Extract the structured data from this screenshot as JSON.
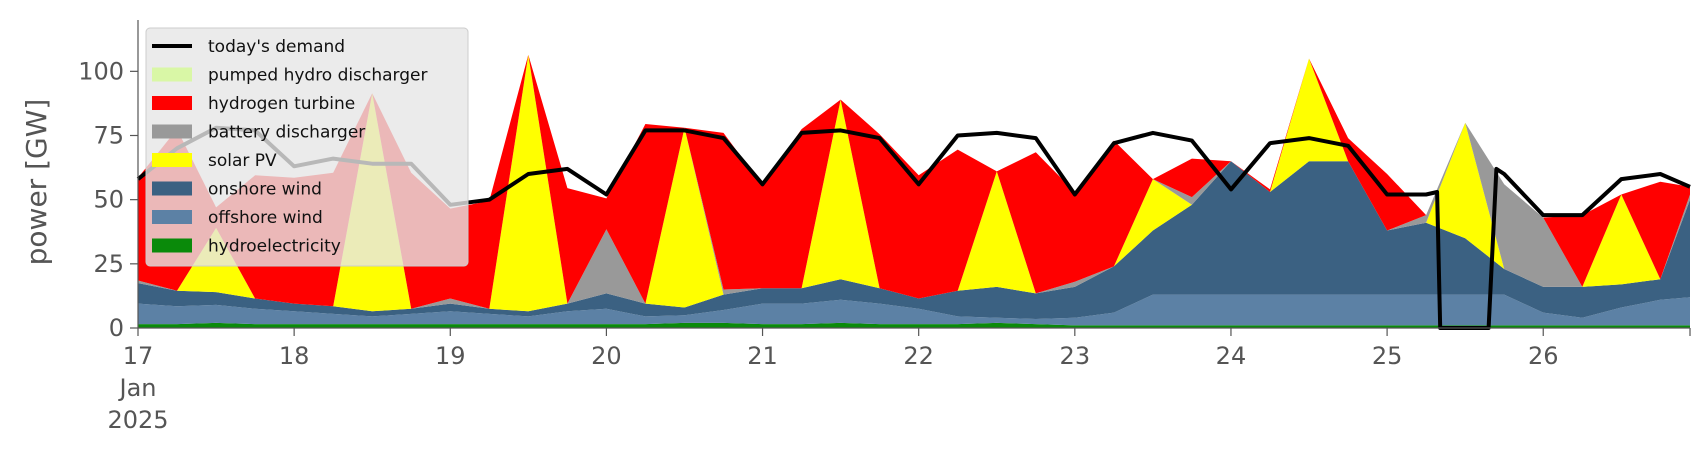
{
  "chart_data": {
    "type": "area",
    "stacked": true,
    "ylabel": "power [GW]",
    "ylim": [
      0,
      120
    ],
    "yticks": [
      0,
      25,
      50,
      75,
      100
    ],
    "xlim": [
      17,
      26.94
    ],
    "xticks": [
      {
        "x": 17,
        "label": "17\nJan\n2025"
      },
      {
        "x": 18,
        "label": "18"
      },
      {
        "x": 19,
        "label": "19"
      },
      {
        "x": 20,
        "label": "20"
      },
      {
        "x": 21,
        "label": "21"
      },
      {
        "x": 22,
        "label": "22"
      },
      {
        "x": 23,
        "label": "23"
      },
      {
        "x": 24,
        "label": "24"
      },
      {
        "x": 25,
        "label": "25"
      },
      {
        "x": 26,
        "label": "26"
      }
    ],
    "grid": false,
    "legend_position": "top-left",
    "legend": [
      {
        "label": "today's demand",
        "kind": "line",
        "color": "#000000"
      },
      {
        "label": "pumped hydro discharger",
        "kind": "patch",
        "color": "#d9f7a6"
      },
      {
        "label": "hydrogen turbine",
        "kind": "patch",
        "color": "#ff0000"
      },
      {
        "label": "battery discharger",
        "kind": "patch",
        "color": "#999999"
      },
      {
        "label": "solar PV",
        "kind": "patch",
        "color": "#ffff00"
      },
      {
        "label": "onshore wind",
        "kind": "patch",
        "color": "#3b6182"
      },
      {
        "label": "offshore wind",
        "kind": "patch",
        "color": "#5c81a5"
      },
      {
        "label": "hydroelectricity",
        "kind": "patch",
        "color": "#0a8a0a"
      }
    ],
    "x": [
      17.0,
      17.25,
      17.5,
      17.75,
      18.0,
      18.25,
      18.5,
      18.75,
      19.0,
      19.25,
      19.5,
      19.75,
      20.0,
      20.25,
      20.5,
      20.75,
      21.0,
      21.25,
      21.5,
      21.75,
      22.0,
      22.25,
      22.5,
      22.75,
      23.0,
      23.25,
      23.5,
      23.75,
      24.0,
      24.25,
      24.5,
      24.75,
      25.0,
      25.25,
      25.5,
      25.75,
      26.0,
      26.25,
      26.5,
      26.75,
      26.94
    ],
    "series": [
      {
        "name": "hydroelectricity",
        "color": "#0a8a0a",
        "values": [
          1.5,
          1.5,
          2,
          1.5,
          1.5,
          1.5,
          1.5,
          1.5,
          1.5,
          1.5,
          1.5,
          1.5,
          1.5,
          1.5,
          2,
          2,
          1.5,
          1.5,
          2,
          1.5,
          1.5,
          1.5,
          2,
          1.5,
          1,
          1,
          1,
          1,
          1,
          1,
          1,
          1,
          1,
          1,
          1,
          1,
          1,
          1,
          1,
          1,
          1
        ]
      },
      {
        "name": "offshore wind",
        "color": "#5c81a5",
        "values": [
          8,
          7,
          7,
          6,
          5,
          4,
          3,
          4,
          5,
          4,
          3,
          5,
          6,
          3,
          3,
          5,
          8,
          8,
          9,
          8,
          6,
          3,
          2,
          2,
          3,
          5,
          12,
          12,
          12,
          12,
          12,
          12,
          12,
          12,
          12,
          12,
          5,
          3,
          7,
          10,
          11
        ]
      },
      {
        "name": "onshore wind",
        "color": "#3b6182",
        "values": [
          8,
          6,
          5,
          4,
          3,
          3,
          2,
          2,
          3,
          2,
          2,
          3,
          6,
          5,
          3,
          6,
          6,
          6,
          8,
          6,
          4,
          10,
          12,
          10,
          12,
          18,
          25,
          35,
          52,
          40,
          52,
          52,
          25,
          28,
          22,
          10,
          10,
          12,
          9,
          8,
          38
        ]
      },
      {
        "name": "solar PV",
        "color": "#ffff00",
        "values": [
          0,
          0,
          25,
          0,
          0,
          0,
          85,
          0,
          0,
          0,
          100,
          0,
          0,
          0,
          70,
          0,
          0,
          0,
          70,
          0,
          0,
          0,
          45,
          0,
          0,
          0,
          20,
          0,
          0,
          0,
          40,
          0,
          0,
          0,
          45,
          0,
          0,
          0,
          35,
          0,
          0
        ]
      },
      {
        "name": "battery discharger",
        "color": "#999999",
        "values": [
          1,
          0,
          0,
          0,
          0,
          0,
          0,
          0,
          2,
          0,
          0,
          0,
          25,
          0,
          0,
          2,
          0,
          0,
          0,
          0,
          0,
          0,
          0,
          0,
          2,
          0,
          0,
          3,
          0,
          0,
          0,
          0,
          0,
          3,
          0,
          33,
          27,
          0,
          0,
          0,
          2
        ]
      },
      {
        "name": "hydrogen turbine",
        "color": "#ff0000",
        "values": [
          40,
          63,
          8,
          48,
          49,
          52,
          0,
          53,
          35,
          42,
          0,
          45,
          12,
          70,
          0,
          61,
          40,
          62,
          0,
          60,
          48,
          55,
          0,
          55,
          35,
          49,
          0,
          15,
          0,
          1,
          0,
          9,
          22,
          0,
          0,
          0,
          0,
          28,
          0,
          38,
          3
        ]
      },
      {
        "name": "pumped hydro discharger",
        "color": "#d9f7a6",
        "values": [
          0,
          0,
          0,
          0,
          0,
          0,
          0,
          0,
          0,
          0,
          0,
          0,
          0,
          0,
          0,
          0,
          0,
          0,
          0,
          0,
          0,
          0,
          0,
          0,
          0,
          0,
          0,
          0,
          0,
          0,
          0,
          0,
          0,
          0,
          0,
          0,
          0,
          0,
          0,
          0,
          0
        ]
      }
    ],
    "demand": {
      "name": "today's demand",
      "color": "#000000",
      "x": [
        17.0,
        17.25,
        17.5,
        17.75,
        18.0,
        18.25,
        18.5,
        18.75,
        19.0,
        19.25,
        19.5,
        19.75,
        20.0,
        20.25,
        20.5,
        20.75,
        21.0,
        21.25,
        21.5,
        21.75,
        22.0,
        22.25,
        22.5,
        22.75,
        23.0,
        23.25,
        23.5,
        23.75,
        24.0,
        24.25,
        24.5,
        24.75,
        25.0,
        25.25,
        25.32,
        25.34,
        25.6,
        25.65,
        25.7,
        25.75,
        26.0,
        26.25,
        26.5,
        26.75,
        26.94
      ],
      "values": [
        58,
        70,
        78,
        77,
        63,
        66,
        64,
        64,
        48,
        50,
        60,
        62,
        52,
        77,
        77,
        74,
        56,
        76,
        77,
        74,
        56,
        75,
        76,
        74,
        52,
        72,
        76,
        73,
        54,
        72,
        74,
        71,
        52,
        52,
        53,
        0,
        0,
        0,
        62,
        60,
        44,
        44,
        58,
        60,
        55
      ]
    }
  }
}
